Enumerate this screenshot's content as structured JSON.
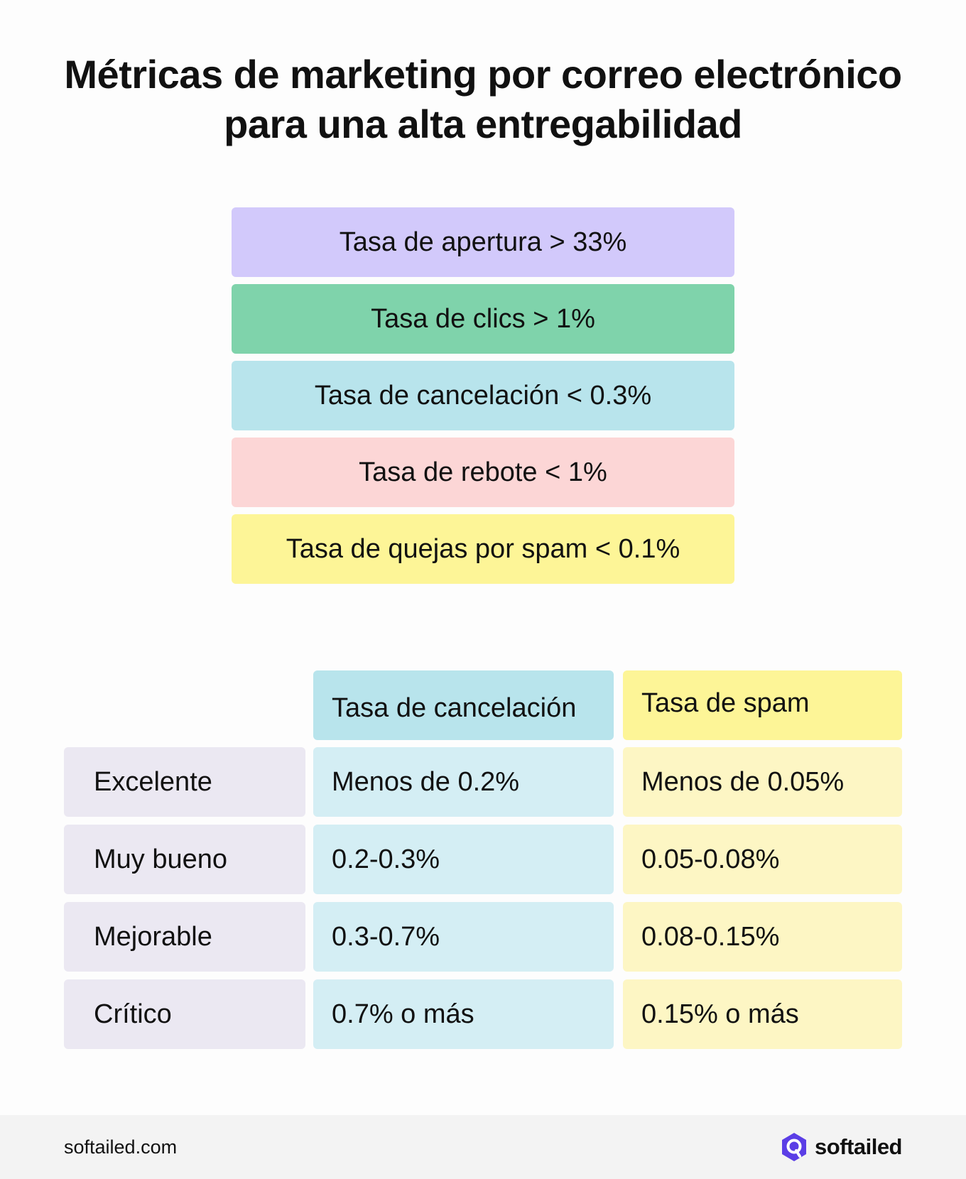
{
  "title": {
    "line1": "Métricas de marketing por correo electrónico",
    "line2": "para una alta entregabilidad"
  },
  "metrics": [
    {
      "label": "Tasa de apertura > 33%",
      "color": "#d2c9fb"
    },
    {
      "label": "Tasa de clics > 1%",
      "color": "#7fd3ab"
    },
    {
      "label": "Tasa de cancelación < 0.3%",
      "color": "#b8e4ec"
    },
    {
      "label": "Tasa de rebote < 1%",
      "color": "#fcd6d6"
    },
    {
      "label": "Tasa de quejas por spam < 0.1%",
      "color": "#fdf597"
    }
  ],
  "table": {
    "headers": [
      "Tasa de cancelación",
      "Tasa de spam"
    ],
    "header_colors": [
      "#b8e4ec",
      "#fdf597"
    ],
    "cell_colors": [
      "#d4eef4",
      "#fdf6c4"
    ],
    "row_label_color": "#ebe8f2",
    "rows": [
      {
        "label": "Excelente",
        "values": [
          "Menos de 0.2%",
          "Menos de 0.05%"
        ]
      },
      {
        "label": "Muy bueno",
        "values": [
          "0.2-0.3%",
          "0.05-0.08%"
        ]
      },
      {
        "label": "Mejorable",
        "values": [
          "0.3-0.7%",
          "0.08-0.15%"
        ]
      },
      {
        "label": "Crítico",
        "values": [
          "0.7% o más",
          "0.15% o más"
        ]
      }
    ]
  },
  "footer": {
    "url": "softailed.com",
    "brand": "softailed",
    "logo_icon": "softailed-logo-icon",
    "logo_color": "#5b3ee6"
  }
}
